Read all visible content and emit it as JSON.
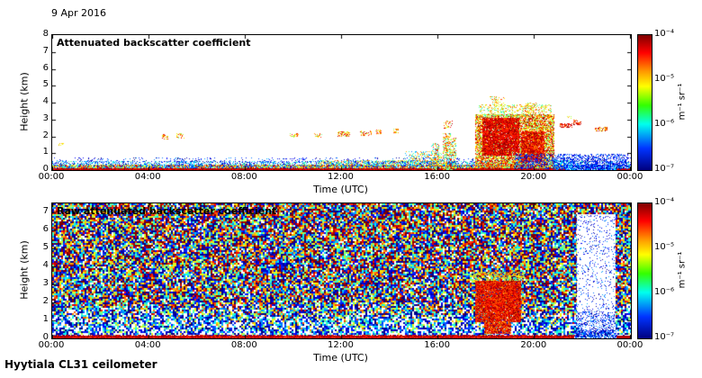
{
  "header": {
    "date": "9 Apr 2016"
  },
  "footer": {
    "instrument": "Hyytiala CL31 ceilometer"
  },
  "chart_data": [
    {
      "type": "heatmap",
      "title": "Attenuated backscatter coefficient",
      "xlabel": "Time (UTC)",
      "ylabel": "Height (km)",
      "x_ticks": [
        "00:00",
        "04:00",
        "08:00",
        "12:00",
        "16:00",
        "20:00",
        "00:00"
      ],
      "y_ticks_desc": [
        "8",
        "7",
        "6",
        "5",
        "4",
        "3",
        "2",
        "1",
        "0"
      ],
      "x_range_hours": [
        0,
        24
      ],
      "y_range_km": [
        0,
        8
      ],
      "colorbar": {
        "colormap": "jet",
        "scale": "log",
        "min": "1e-7",
        "max": "1e-4",
        "ticks": [
          "10⁻⁴",
          "10⁻⁵",
          "10⁻⁶",
          "10⁻⁷"
        ],
        "unit": "m⁻¹ sr⁻¹"
      },
      "render_seed": 42,
      "features": [
        {
          "type": "band",
          "t": [
            0,
            21.2
          ],
          "z": [
            0,
            0.32
          ],
          "density": 0.92,
          "v": [
            0.05,
            1.0
          ]
        },
        {
          "type": "band",
          "t": [
            21.2,
            24
          ],
          "z": [
            0,
            0.32
          ],
          "density": 0.75,
          "v": [
            0.0,
            0.4
          ]
        },
        {
          "type": "band",
          "t": [
            0,
            24
          ],
          "z": [
            0.32,
            0.52
          ],
          "density": 0.4,
          "v": [
            0.0,
            0.5
          ]
        },
        {
          "type": "band",
          "t": [
            0,
            24
          ],
          "z": [
            0.52,
            0.75
          ],
          "density": 0.12,
          "v": [
            0.0,
            0.3
          ]
        },
        {
          "type": "solid",
          "t": [
            0,
            21.3
          ],
          "z": [
            0,
            0.09
          ],
          "v": 0.95
        },
        {
          "type": "solid",
          "t": [
            23.4,
            24
          ],
          "z": [
            0,
            0.09
          ],
          "v": 0.93
        },
        {
          "type": "band",
          "t": [
            0,
            21.3
          ],
          "z": [
            0,
            0.12
          ],
          "density": 0.5,
          "v": [
            0.85,
            1.0
          ]
        },
        {
          "type": "band",
          "t": [
            0.25,
            0.45
          ],
          "z": [
            1.45,
            1.6
          ],
          "density": 0.35,
          "v": [
            0.45,
            0.8
          ]
        },
        {
          "type": "band",
          "t": [
            4.55,
            4.8
          ],
          "z": [
            1.85,
            2.15
          ],
          "density": 0.45,
          "v": [
            0.55,
            0.95
          ]
        },
        {
          "type": "band",
          "t": [
            5.15,
            5.45
          ],
          "z": [
            1.9,
            2.2
          ],
          "density": 0.4,
          "v": [
            0.5,
            0.9
          ]
        },
        {
          "type": "band",
          "t": [
            9.85,
            10.2
          ],
          "z": [
            1.95,
            2.2
          ],
          "density": 0.45,
          "v": [
            0.45,
            0.9
          ]
        },
        {
          "type": "band",
          "t": [
            10.85,
            11.15
          ],
          "z": [
            1.95,
            2.2
          ],
          "density": 0.4,
          "v": [
            0.45,
            0.85
          ]
        },
        {
          "type": "band",
          "t": [
            11.85,
            12.35
          ],
          "z": [
            2.0,
            2.3
          ],
          "density": 0.5,
          "v": [
            0.5,
            0.95
          ]
        },
        {
          "type": "band",
          "t": [
            12.75,
            13.25
          ],
          "z": [
            2.05,
            2.35
          ],
          "density": 0.45,
          "v": [
            0.5,
            0.95
          ]
        },
        {
          "type": "band",
          "t": [
            13.4,
            13.65
          ],
          "z": [
            2.15,
            2.4
          ],
          "density": 0.4,
          "v": [
            0.5,
            0.9
          ]
        },
        {
          "type": "band",
          "t": [
            14.15,
            14.35
          ],
          "z": [
            2.2,
            2.45
          ],
          "density": 0.35,
          "v": [
            0.5,
            0.85
          ]
        },
        {
          "type": "band",
          "t": [
            11.0,
            16.6
          ],
          "z": [
            0.3,
            0.6
          ],
          "density": 0.5,
          "v": [
            0.1,
            0.85
          ]
        },
        {
          "type": "band",
          "t": [
            14.6,
            16.7
          ],
          "z": [
            0.55,
            1.1
          ],
          "density": 0.3,
          "v": [
            0.2,
            0.85
          ]
        },
        {
          "type": "band",
          "t": [
            15.7,
            16.0
          ],
          "z": [
            0,
            1.6
          ],
          "density": 0.45,
          "v": [
            0.3,
            0.9
          ]
        },
        {
          "type": "band",
          "t": [
            16.2,
            16.5
          ],
          "z": [
            0,
            2.2
          ],
          "density": 0.5,
          "v": [
            0.35,
            0.95
          ]
        },
        {
          "type": "band",
          "t": [
            16.55,
            16.75
          ],
          "z": [
            0,
            1.9
          ],
          "density": 0.45,
          "v": [
            0.3,
            0.9
          ]
        },
        {
          "type": "band",
          "t": [
            16.25,
            16.6
          ],
          "z": [
            2.5,
            2.95
          ],
          "density": 0.35,
          "v": [
            0.5,
            0.95
          ]
        },
        {
          "type": "band",
          "t": [
            17.55,
            20.8
          ],
          "z": [
            0.15,
            3.3
          ],
          "density": 0.8,
          "v": [
            0.45,
            1.0
          ]
        },
        {
          "type": "band",
          "t": [
            17.85,
            19.35
          ],
          "z": [
            0.9,
            3.1
          ],
          "density": 0.9,
          "v": [
            0.8,
            1.0
          ]
        },
        {
          "type": "band",
          "t": [
            19.45,
            20.4
          ],
          "z": [
            0.5,
            2.3
          ],
          "density": 0.9,
          "v": [
            0.75,
            1.0
          ]
        },
        {
          "type": "band",
          "t": [
            17.7,
            20.7
          ],
          "z": [
            3.2,
            3.9
          ],
          "density": 0.3,
          "v": [
            0.4,
            0.8
          ]
        },
        {
          "type": "band",
          "t": [
            18.15,
            18.75
          ],
          "z": [
            3.8,
            4.35
          ],
          "density": 0.3,
          "v": [
            0.45,
            0.85
          ]
        },
        {
          "type": "band",
          "t": [
            19.6,
            20.1
          ],
          "z": [
            3.3,
            4.0
          ],
          "density": 0.3,
          "v": [
            0.45,
            0.85
          ]
        },
        {
          "type": "band",
          "t": [
            19.2,
            23.9
          ],
          "z": [
            0.08,
            0.95
          ],
          "density": 0.4,
          "v": [
            0.0,
            0.28
          ]
        },
        {
          "type": "band",
          "t": [
            20.8,
            21.6
          ],
          "z": [
            0.05,
            0.6
          ],
          "density": 0.5,
          "v": [
            0.05,
            0.4
          ]
        },
        {
          "type": "band",
          "t": [
            21.05,
            21.55
          ],
          "z": [
            2.55,
            2.8
          ],
          "density": 0.65,
          "v": [
            0.75,
            1.0
          ]
        },
        {
          "type": "band",
          "t": [
            21.6,
            21.9
          ],
          "z": [
            2.7,
            3.0
          ],
          "density": 0.55,
          "v": [
            0.7,
            1.0
          ]
        },
        {
          "type": "band",
          "t": [
            21.3,
            21.5
          ],
          "z": [
            3.05,
            3.2
          ],
          "density": 0.4,
          "v": [
            0.5,
            0.8
          ]
        },
        {
          "type": "band",
          "t": [
            22.5,
            23.0
          ],
          "z": [
            2.3,
            2.55
          ],
          "density": 0.55,
          "v": [
            0.6,
            1.0
          ]
        }
      ]
    },
    {
      "type": "heatmap",
      "title": "Raw attenuated backscatter coefficient",
      "xlabel": "Time (UTC)",
      "ylabel": "Height (km)",
      "x_ticks": [
        "00:00",
        "04:00",
        "08:00",
        "12:00",
        "16:00",
        "20:00",
        "00:00"
      ],
      "y_ticks_desc": [
        "7",
        "6",
        "5",
        "4",
        "3",
        "2",
        "1",
        "0"
      ],
      "x_range_hours": [
        0,
        24
      ],
      "y_range_km": [
        0,
        7.5
      ],
      "colorbar": {
        "colormap": "jet",
        "scale": "log",
        "min": "1e-7",
        "max": "1e-4",
        "ticks": [
          "10⁻⁴",
          "10⁻⁵",
          "10⁻⁶",
          "10⁻⁷"
        ],
        "unit": "m⁻¹ sr⁻¹"
      },
      "render_seed": 1337,
      "features": [
        {
          "type": "noise",
          "t": [
            0,
            24
          ],
          "z": [
            0.12,
            7.5
          ]
        },
        {
          "type": "band",
          "t": [
            17.55,
            19.45
          ],
          "z": [
            0.9,
            3.2
          ],
          "density": 0.95,
          "v": [
            0.75,
            1.0
          ]
        },
        {
          "type": "band",
          "t": [
            17.9,
            19.0
          ],
          "z": [
            0.25,
            0.95
          ],
          "density": 0.9,
          "v": [
            0.7,
            1.0
          ]
        },
        {
          "type": "band",
          "t": [
            17.45,
            19.55
          ],
          "z": [
            3.2,
            3.7
          ],
          "density": 0.5,
          "v": [
            0.45,
            0.8
          ]
        },
        {
          "type": "solid",
          "t": [
            21.75,
            23.35
          ],
          "z": [
            0.3,
            6.9
          ],
          "v": -1
        },
        {
          "type": "band",
          "t": [
            21.75,
            23.35
          ],
          "z": [
            0.3,
            6.9
          ],
          "density": 0.1,
          "v": [
            0.0,
            0.3
          ]
        },
        {
          "type": "band",
          "t": [
            21.75,
            23.35
          ],
          "z": [
            0.3,
            1.5
          ],
          "density": 0.25,
          "v": [
            0.0,
            0.3
          ]
        },
        {
          "type": "solid",
          "t": [
            0,
            21.65
          ],
          "z": [
            0,
            0.14
          ],
          "v": 0.95
        },
        {
          "type": "solid",
          "t": [
            23.4,
            24
          ],
          "z": [
            0,
            0.14
          ],
          "v": 0.95
        },
        {
          "type": "band",
          "t": [
            0,
            21.65
          ],
          "z": [
            0,
            0.18
          ],
          "density": 0.5,
          "v": [
            0.8,
            1.0
          ]
        },
        {
          "type": "band",
          "t": [
            21.65,
            23.4
          ],
          "z": [
            0,
            0.5
          ],
          "density": 0.55,
          "v": [
            0.0,
            0.3
          ]
        }
      ]
    }
  ]
}
